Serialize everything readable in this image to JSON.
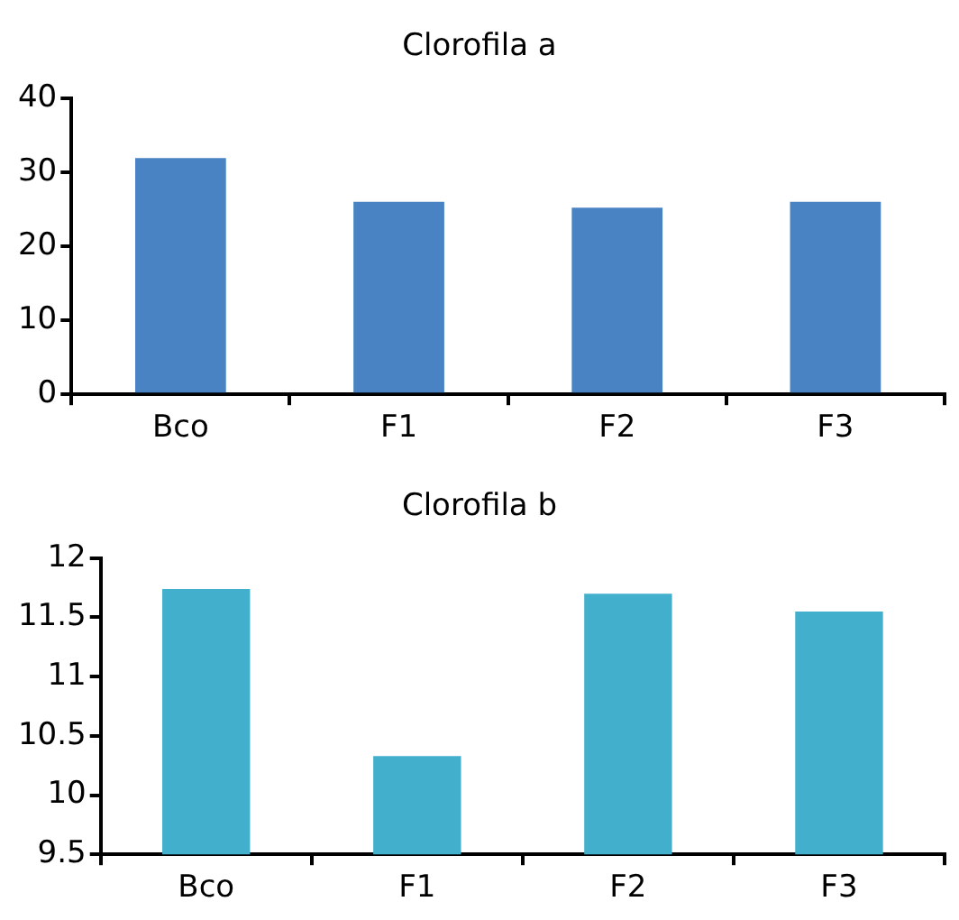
{
  "chart_data": [
    {
      "type": "bar",
      "title": "Clorofila a",
      "categories": [
        "Bco",
        "F1",
        "F2",
        "F3"
      ],
      "values": [
        31.9,
        26.0,
        25.2,
        26.0
      ],
      "color": "#4a83c4",
      "ylim": [
        0,
        40
      ],
      "yticks": [
        0,
        10,
        20,
        30,
        40
      ],
      "legend": false
    },
    {
      "type": "bar",
      "title": "Clorofila b",
      "categories": [
        "Bco",
        "F1",
        "F2",
        "F3"
      ],
      "values": [
        11.74,
        10.33,
        11.7,
        11.55
      ],
      "color": "#42b0cc",
      "ylim": [
        9.5,
        12
      ],
      "yticks": [
        9.5,
        10,
        10.5,
        11,
        11.5,
        12
      ],
      "legend": false
    }
  ]
}
